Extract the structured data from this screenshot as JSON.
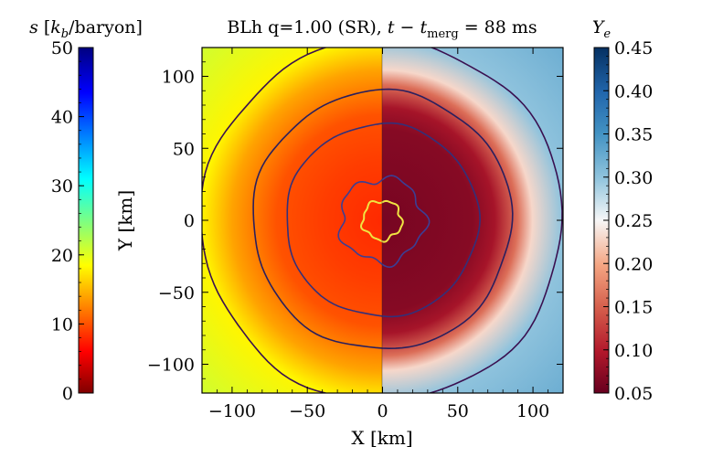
{
  "chart_data": {
    "type": "heatmap",
    "title": "BLh q=1.00 (SR), t − t_merg = 88 ms",
    "title_parts": {
      "main": "BLh q=1.00 (SR), ",
      "t": "t",
      "minus": " − ",
      "tm": "t",
      "sub": "merg",
      "rest": " = 88 ms"
    },
    "xlabel": "X [km]",
    "ylabel": "Y [km]",
    "xlim": [
      -120,
      120
    ],
    "ylim": [
      -120,
      120
    ],
    "xticks": [
      -100,
      -50,
      0,
      50,
      100
    ],
    "yticks": [
      -100,
      -50,
      0,
      50,
      100
    ],
    "xtick_labels": [
      "−100",
      "−50",
      "0",
      "50",
      "100"
    ],
    "ytick_labels": [
      "−100",
      "−50",
      "0",
      "50",
      "100"
    ],
    "left_panel": {
      "quantity": "entropy",
      "colorbar_label": "s [k_b/baryon]",
      "colorbar_label_parts": {
        "s": "s",
        "open": " [",
        "k": "k",
        "b": "b",
        "rest": "/baryon]"
      },
      "colormap": "jet",
      "range": [
        0,
        50
      ],
      "ticks": [
        0,
        10,
        20,
        30,
        40,
        50
      ],
      "tick_labels": [
        "0",
        "10",
        "20",
        "30",
        "40",
        "50"
      ],
      "radial_profile": [
        {
          "r_km": 0,
          "s": 8
        },
        {
          "r_km": 40,
          "s": 9
        },
        {
          "r_km": 70,
          "s": 10
        },
        {
          "r_km": 100,
          "s": 14
        },
        {
          "r_km": 120,
          "s": 18
        }
      ]
    },
    "right_panel": {
      "quantity": "electron fraction",
      "colorbar_label": "Y_e",
      "colorbar_label_parts": {
        "y": "Y",
        "e": "e"
      },
      "colormap": "RdBu",
      "range": [
        0.05,
        0.45
      ],
      "ticks": [
        0.05,
        0.1,
        0.15,
        0.2,
        0.25,
        0.3,
        0.35,
        0.4,
        0.45
      ],
      "tick_labels": [
        "0.05",
        "0.10",
        "0.15",
        "0.20",
        "0.25",
        "0.30",
        "0.35",
        "0.40",
        "0.45"
      ],
      "radial_profile": [
        {
          "r_km": 0,
          "ye": 0.06
        },
        {
          "r_km": 60,
          "ye": 0.07
        },
        {
          "r_km": 75,
          "ye": 0.09
        },
        {
          "r_km": 90,
          "ye": 0.16
        },
        {
          "r_km": 100,
          "ye": 0.23
        },
        {
          "r_km": 120,
          "ye": 0.3
        }
      ]
    },
    "density_contours": [
      {
        "radius_km": 13,
        "color": "#f0e442"
      },
      {
        "radius_km": 28,
        "color": "#3b3f95"
      },
      {
        "radius_km": 64,
        "color": "#33307a"
      },
      {
        "radius_km": 86,
        "color": "#2a1f5e"
      },
      {
        "radius_km": 120,
        "color": "#3a1050"
      }
    ]
  }
}
